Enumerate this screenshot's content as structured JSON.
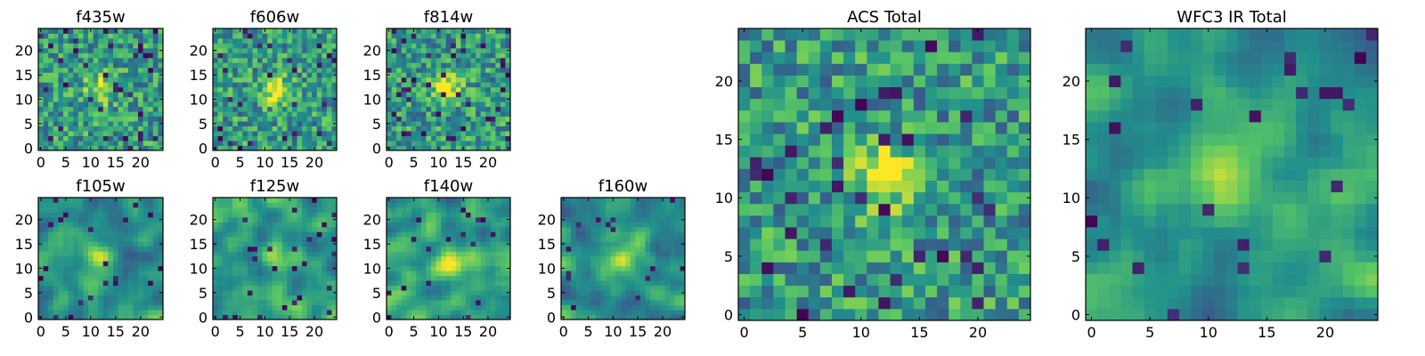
{
  "figure": {
    "colormap": [
      "#440154",
      "#3b528b",
      "#21918c",
      "#5ec962",
      "#fde725"
    ],
    "frame_color": "#000000"
  },
  "chart_data": [
    {
      "type": "heatmap",
      "title": "f435w",
      "grid": [
        25,
        25
      ],
      "xticks": [
        0,
        5,
        10,
        15,
        20
      ],
      "yticks": [
        0,
        5,
        10,
        15,
        20
      ],
      "xlim": [
        -0.5,
        24.5
      ],
      "ylim": [
        -0.5,
        24.5
      ],
      "bright_source": [
        12,
        12
      ],
      "texture": "noisy"
    },
    {
      "type": "heatmap",
      "title": "f606w",
      "grid": [
        25,
        25
      ],
      "xticks": [
        0,
        5,
        10,
        15,
        20
      ],
      "yticks": [
        0,
        5,
        10,
        15,
        20
      ],
      "xlim": [
        -0.5,
        24.5
      ],
      "ylim": [
        -0.5,
        24.5
      ],
      "bright_source": [
        12,
        12
      ],
      "texture": "noisy"
    },
    {
      "type": "heatmap",
      "title": "f814w",
      "grid": [
        25,
        25
      ],
      "xticks": [
        0,
        5,
        10,
        15,
        20
      ],
      "yticks": [
        0,
        5,
        10,
        15,
        20
      ],
      "xlim": [
        -0.5,
        24.5
      ],
      "ylim": [
        -0.5,
        24.5
      ],
      "bright_source": [
        12,
        12
      ],
      "texture": "noisy"
    },
    {
      "type": "heatmap",
      "title": "f105w",
      "grid": [
        25,
        25
      ],
      "xticks": [
        0,
        5,
        10,
        15,
        20
      ],
      "yticks": [
        0,
        5,
        10,
        15,
        20
      ],
      "xlim": [
        -0.5,
        24.5
      ],
      "ylim": [
        -0.5,
        24.5
      ],
      "bright_source": [
        12,
        12
      ],
      "texture": "smooth"
    },
    {
      "type": "heatmap",
      "title": "f125w",
      "grid": [
        25,
        25
      ],
      "xticks": [
        0,
        5,
        10,
        15,
        20
      ],
      "yticks": [
        0,
        5,
        10,
        15,
        20
      ],
      "xlim": [
        -0.5,
        24.5
      ],
      "ylim": [
        -0.5,
        24.5
      ],
      "bright_source": [
        12,
        12
      ],
      "texture": "smooth"
    },
    {
      "type": "heatmap",
      "title": "f140w",
      "grid": [
        25,
        25
      ],
      "xticks": [
        0,
        5,
        10,
        15,
        20
      ],
      "yticks": [
        0,
        5,
        10,
        15,
        20
      ],
      "xlim": [
        -0.5,
        24.5
      ],
      "ylim": [
        -0.5,
        24.5
      ],
      "bright_source": [
        12,
        12
      ],
      "texture": "smooth"
    },
    {
      "type": "heatmap",
      "title": "f160w",
      "grid": [
        25,
        25
      ],
      "xticks": [
        0,
        5,
        10,
        15,
        20
      ],
      "yticks": [
        0,
        5,
        10,
        15,
        20
      ],
      "xlim": [
        -0.5,
        24.5
      ],
      "ylim": [
        -0.5,
        24.5
      ],
      "bright_source": [
        12,
        12
      ],
      "texture": "smooth"
    },
    {
      "type": "heatmap",
      "title": "ACS Total",
      "grid": [
        25,
        25
      ],
      "xticks": [
        0,
        5,
        10,
        15,
        20
      ],
      "yticks": [
        0,
        5,
        10,
        15,
        20
      ],
      "xlim": [
        -0.5,
        24.5
      ],
      "ylim": [
        -0.5,
        24.5
      ],
      "bright_source": [
        12,
        12
      ],
      "texture": "noisy"
    },
    {
      "type": "heatmap",
      "title": "WFC3 IR Total",
      "grid": [
        25,
        25
      ],
      "xticks": [
        0,
        5,
        10,
        15,
        20
      ],
      "yticks": [
        0,
        5,
        10,
        15,
        20
      ],
      "xlim": [
        -0.5,
        24.5
      ],
      "ylim": [
        -0.5,
        24.5
      ],
      "bright_source": [
        12,
        12
      ],
      "texture": "smooth"
    }
  ]
}
